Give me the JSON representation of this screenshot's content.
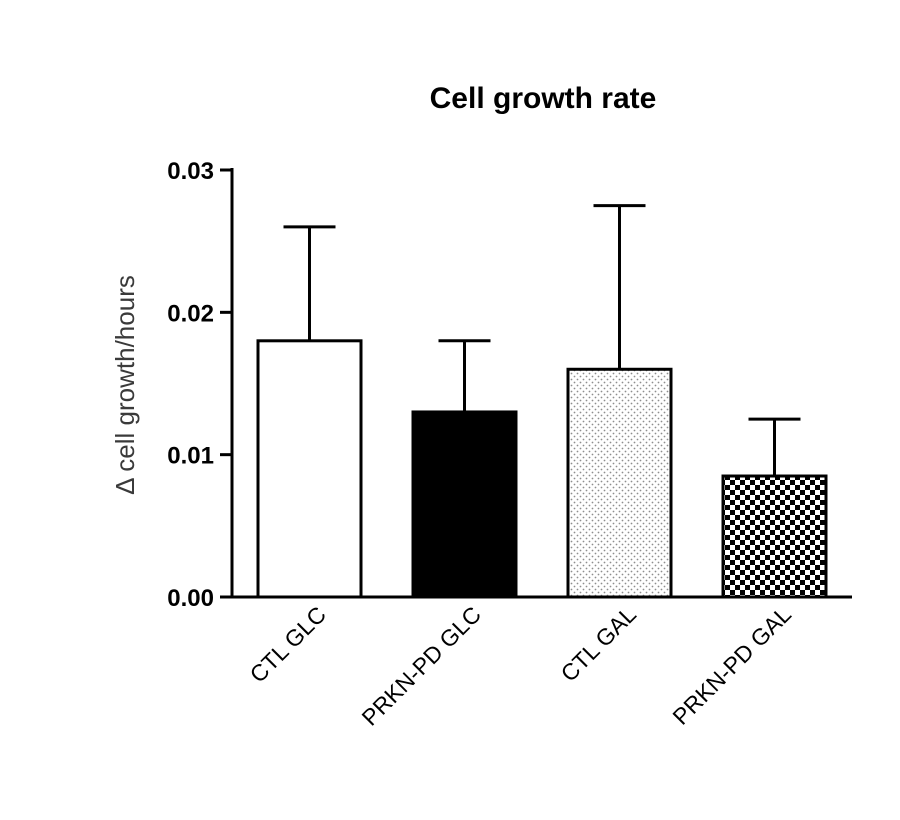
{
  "chart_data": {
    "type": "bar",
    "title": "Cell growth rate",
    "xlabel": "",
    "ylabel": "Δ cell growth/hours",
    "ylim": [
      0,
      0.03
    ],
    "yticks": [
      0.0,
      0.01,
      0.02,
      0.03
    ],
    "ytick_labels": [
      "0.00",
      "0.01",
      "0.02",
      "0.03"
    ],
    "categories": [
      "CTL GLC",
      "PRKN-PD GLC",
      "CTL GAL",
      "PRKN-PD GAL"
    ],
    "values": [
      0.018,
      0.013,
      0.016,
      0.0085
    ],
    "error_upper": [
      0.008,
      0.005,
      0.0115,
      0.004
    ],
    "fills": [
      "white",
      "black",
      "dots",
      "checker"
    ],
    "colors": {
      "bar_border": "#000000",
      "background": "#ffffff",
      "dots": "#9a9a9a"
    },
    "grid": false
  }
}
